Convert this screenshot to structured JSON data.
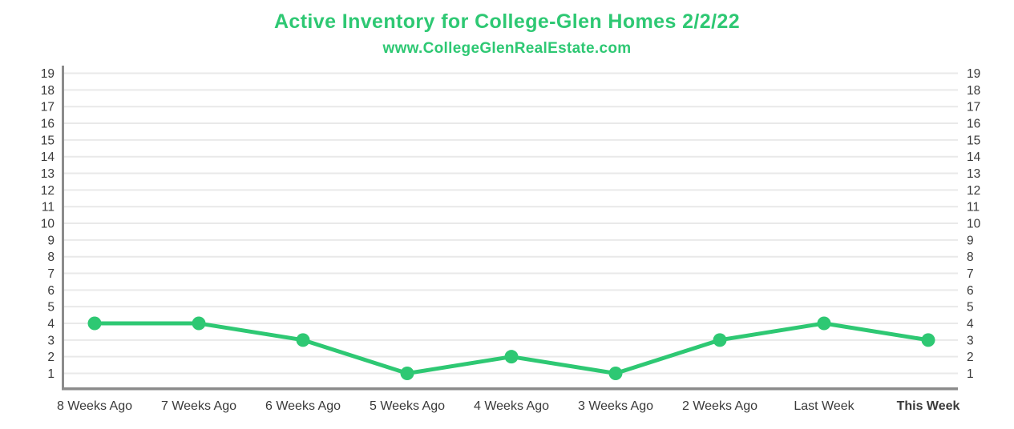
{
  "chart_data": {
    "type": "line",
    "title": "Active Inventory for College-Glen Homes 2/2/22",
    "subtitle": "www.CollegeGlenRealEstate.com",
    "categories": [
      "8 Weeks Ago",
      "7 Weeks Ago",
      "6 Weeks Ago",
      "5 Weeks Ago",
      "4 Weeks Ago",
      "3 Weeks Ago",
      "2 Weeks Ago",
      "Last Week",
      "This Week"
    ],
    "series": [
      {
        "name": "Active Inventory",
        "values": [
          4,
          4,
          3,
          1,
          2,
          1,
          3,
          4,
          3
        ]
      }
    ],
    "yticks": [
      1,
      2,
      3,
      4,
      5,
      6,
      7,
      8,
      9,
      10,
      11,
      12,
      13,
      14,
      15,
      16,
      17,
      18,
      19
    ],
    "ylim": [
      0,
      19
    ],
    "xlabel": "",
    "ylabel": "",
    "grid": "horizontal",
    "legend": "none",
    "y_axis_sides": "both",
    "highlighted_category": "This Week",
    "colors": {
      "line": "#2ec873",
      "marker": "#2ec873",
      "title": "#2ec873",
      "highlight_label": "#2ec873",
      "grid": "#e9e9e9",
      "axis": "#8c8c8c",
      "tick_text": "#3a3a3a"
    }
  }
}
